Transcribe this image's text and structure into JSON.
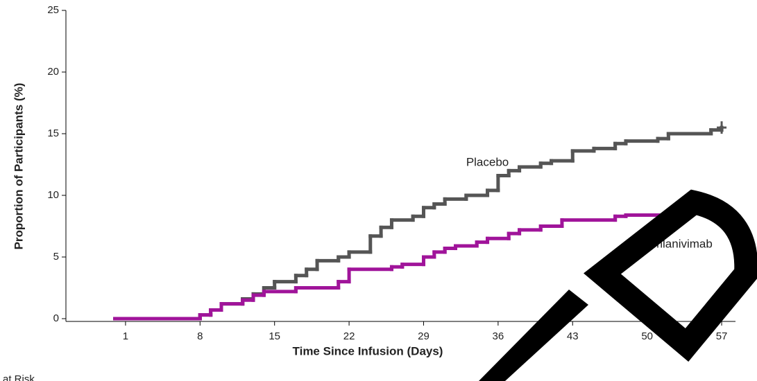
{
  "chart_data": {
    "type": "step",
    "xlabel": "Time Since Infusion (Days)",
    "ylabel": "Proportion of Participants (%)",
    "risk_table_label": "at Risk",
    "xlim": [
      -4.6,
      58.3
    ],
    "xticks": [
      1,
      8,
      15,
      22,
      29,
      36,
      43,
      50,
      57
    ],
    "ylim": [
      0,
      25
    ],
    "yticks": [
      0,
      5,
      10,
      15,
      20,
      25
    ],
    "series": [
      {
        "name": "Placebo",
        "color": "#555555",
        "x": [
          0,
          8,
          9,
          10,
          12,
          13,
          14,
          15,
          17,
          18,
          19,
          21,
          22,
          24,
          25,
          26,
          28,
          29,
          30,
          31,
          33,
          35,
          36,
          37,
          38,
          40,
          41,
          43,
          45,
          47,
          48,
          51,
          52,
          56,
          57
        ],
        "values": [
          0,
          0.3,
          0.7,
          1.2,
          1.6,
          2.0,
          2.5,
          3.0,
          3.5,
          4.0,
          4.7,
          5.0,
          5.4,
          6.7,
          7.4,
          8.0,
          8.3,
          9.0,
          9.3,
          9.7,
          10.0,
          10.4,
          11.6,
          12.0,
          12.3,
          12.6,
          12.8,
          13.6,
          13.8,
          14.2,
          14.4,
          14.6,
          15.0,
          15.3,
          15.5
        ]
      },
      {
        "name": "Bamlanivimab",
        "color": "#a0149a",
        "x": [
          0,
          8,
          9,
          10,
          12,
          13,
          14,
          17,
          21,
          22,
          26,
          27,
          29,
          30,
          31,
          32,
          34,
          35,
          37,
          38,
          40,
          42,
          47,
          48,
          53,
          56,
          57
        ],
        "values": [
          0,
          0.3,
          0.7,
          1.2,
          1.5,
          1.9,
          2.2,
          2.5,
          3.0,
          4.0,
          4.2,
          4.4,
          5.0,
          5.4,
          5.7,
          5.9,
          6.2,
          6.5,
          6.9,
          7.2,
          7.5,
          8.0,
          8.3,
          8.4,
          8.6,
          8.7,
          8.7
        ]
      }
    ]
  }
}
